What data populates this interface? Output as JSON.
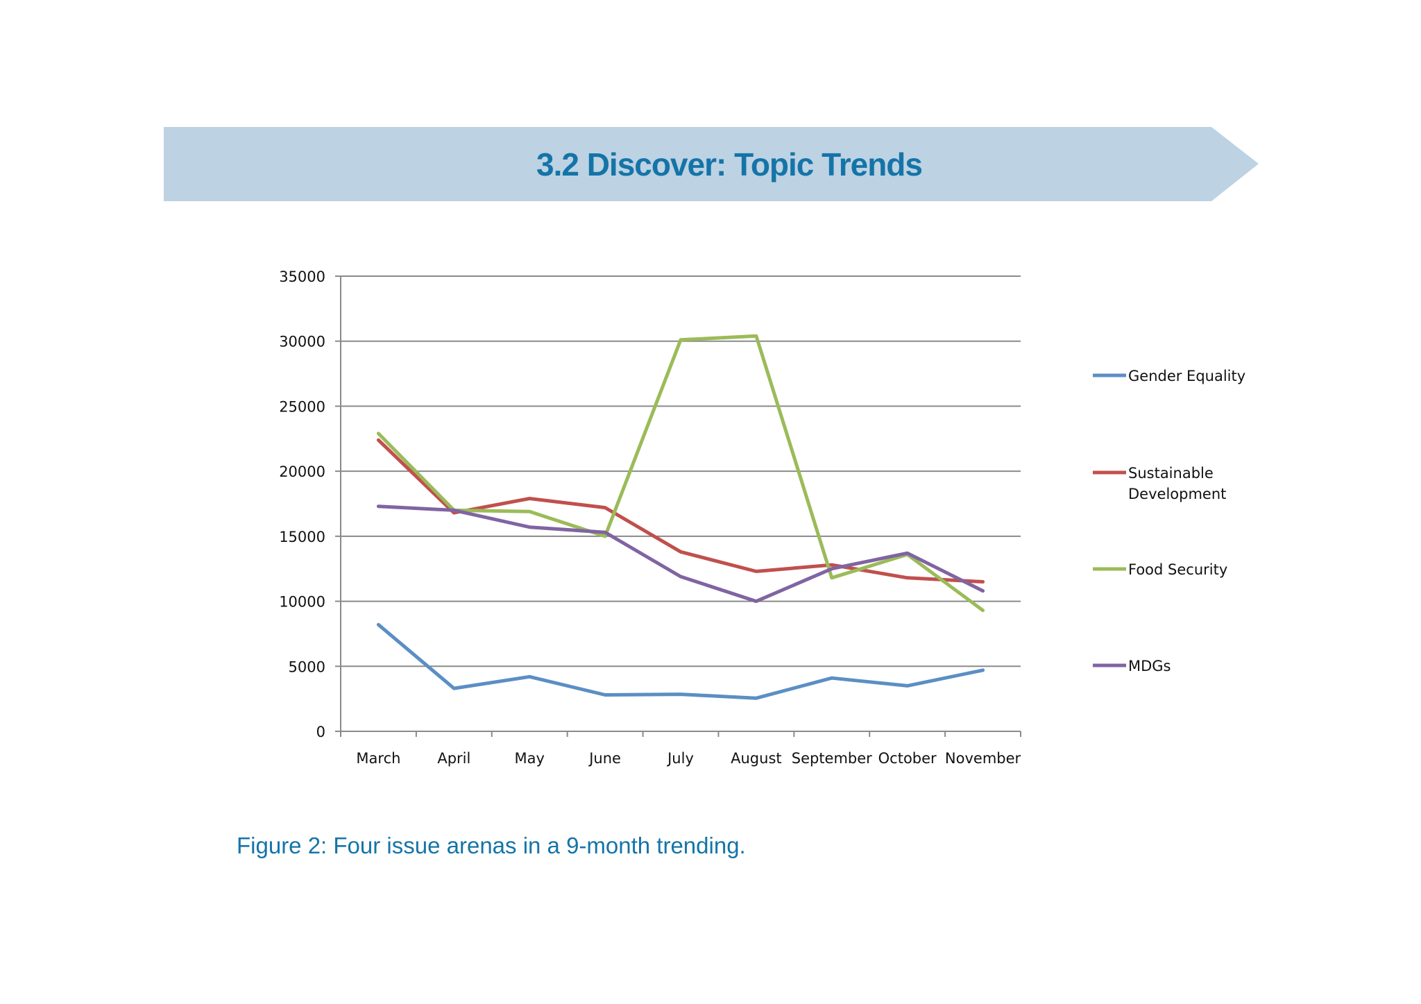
{
  "header": {
    "title": "3.2 Discover: Topic Trends",
    "banner_color": "#bdd2e2",
    "title_color": "#1474a8"
  },
  "chart_data": {
    "type": "line",
    "categories": [
      "March",
      "April",
      "May",
      "June",
      "July",
      "August",
      "September",
      "October",
      "November"
    ],
    "ylim": [
      0,
      35000
    ],
    "yticks": [
      "0",
      "5000",
      "10000",
      "15000",
      "20000",
      "25000",
      "30000",
      "35000"
    ],
    "grid": true,
    "legend_position": "right",
    "series": [
      {
        "name": "Gender Equality",
        "color": "#5b8ec4",
        "values": [
          8200,
          3300,
          4200,
          2800,
          2850,
          2550,
          4100,
          3500,
          4700
        ]
      },
      {
        "name": "Sustainable Development",
        "color": "#c0504d",
        "values": [
          22400,
          16800,
          17900,
          17200,
          13800,
          12300,
          12800,
          11800,
          11500
        ]
      },
      {
        "name": "Food Security",
        "color": "#9bbb59",
        "values": [
          22900,
          17000,
          16900,
          15000,
          30100,
          30400,
          11800,
          13600,
          9300
        ]
      },
      {
        "name": "MDGs",
        "color": "#8064a2",
        "values": [
          17300,
          17000,
          15700,
          15300,
          11900,
          10000,
          12500,
          13700,
          10800
        ]
      }
    ]
  },
  "caption": "Figure 2: Four issue arenas in a 9-month trending."
}
